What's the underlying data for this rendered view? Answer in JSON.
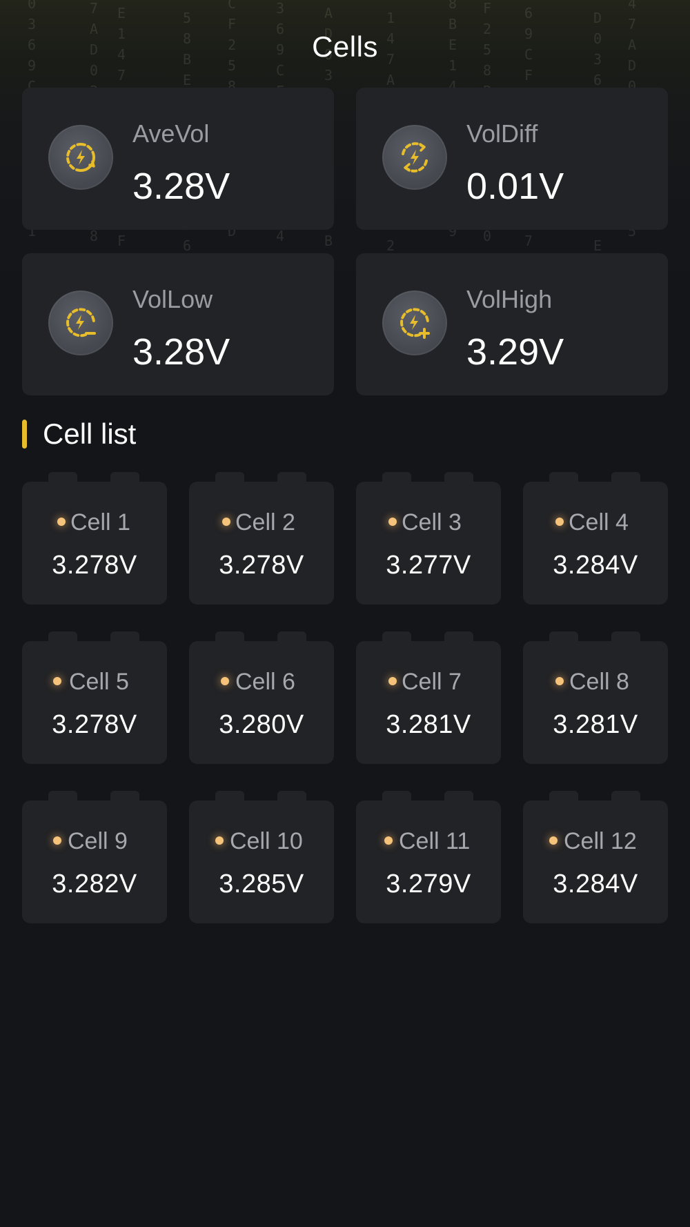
{
  "header": {
    "title": "Cells"
  },
  "stats": [
    {
      "label": "AveVol",
      "value": "3.28V",
      "icon": "battery-cycle-icon"
    },
    {
      "label": "VolDiff",
      "value": "0.01V",
      "icon": "battery-diff-icon"
    },
    {
      "label": "VolLow",
      "value": "3.28V",
      "icon": "battery-minus-icon"
    },
    {
      "label": "VolHigh",
      "value": "3.29V",
      "icon": "battery-plus-icon"
    }
  ],
  "cell_list": {
    "title": "Cell list",
    "cells": [
      {
        "name": "Cell 1",
        "voltage": "3.278V"
      },
      {
        "name": "Cell 2",
        "voltage": "3.278V"
      },
      {
        "name": "Cell 3",
        "voltage": "3.277V"
      },
      {
        "name": "Cell 4",
        "voltage": "3.284V"
      },
      {
        "name": "Cell 5",
        "voltage": "3.278V"
      },
      {
        "name": "Cell 6",
        "voltage": "3.280V"
      },
      {
        "name": "Cell 7",
        "voltage": "3.281V"
      },
      {
        "name": "Cell 8",
        "voltage": "3.281V"
      },
      {
        "name": "Cell 9",
        "voltage": "3.282V"
      },
      {
        "name": "Cell 10",
        "voltage": "3.285V"
      },
      {
        "name": "Cell 11",
        "voltage": "3.279V"
      },
      {
        "name": "Cell 12",
        "voltage": "3.284V"
      }
    ]
  },
  "colors": {
    "background": "#131519",
    "card": "#222326",
    "accent": "#e8bd2b",
    "status_dot": "#f5c47a"
  }
}
